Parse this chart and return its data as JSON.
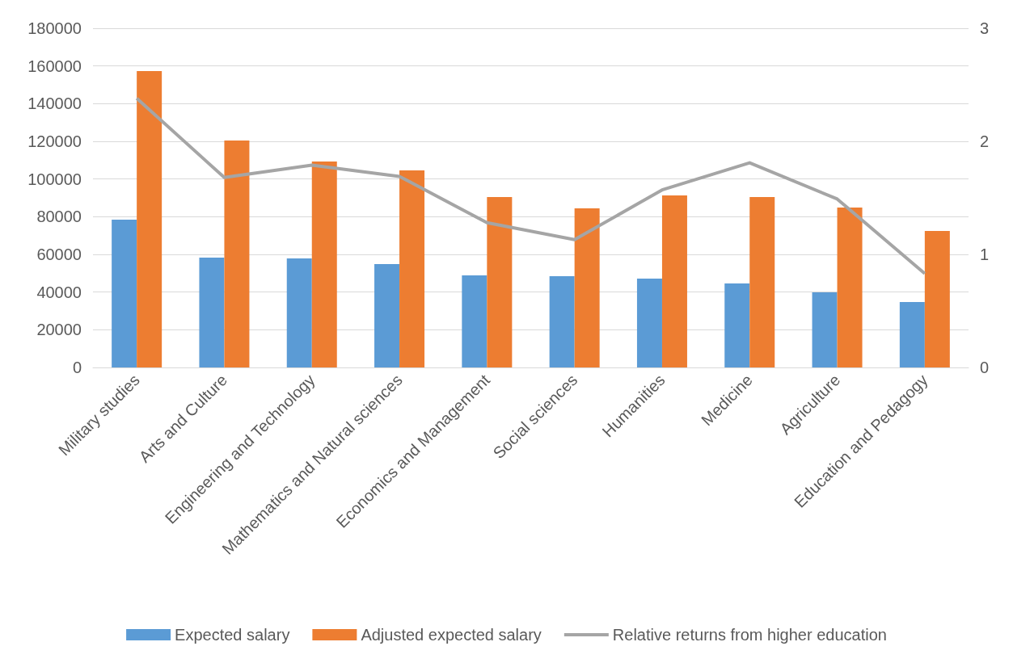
{
  "chart_data": {
    "type": "bar",
    "categories": [
      "Military studies",
      "Arts and Culture",
      "Engineering and Technology",
      "Mathematics and Natural sciences",
      "Economics and Management",
      "Social sciences",
      "Humanities",
      "Medicine",
      "Agriculture",
      "Education and Pedagogy"
    ],
    "series": [
      {
        "name": "Expected salary",
        "color": "#5b9bd5",
        "values": [
          78400,
          58300,
          57900,
          54900,
          48900,
          48400,
          47100,
          44600,
          39900,
          34700
        ]
      },
      {
        "name": "Adjusted expected salary",
        "color": "#ed7d31",
        "values": [
          157300,
          120400,
          109300,
          104600,
          90400,
          84400,
          91300,
          90400,
          84900,
          72400
        ]
      },
      {
        "name": "Relative returns from higher education",
        "type": "line",
        "axis": "y2",
        "color": "#a5a5a5",
        "values": [
          2.38,
          1.68,
          1.79,
          1.69,
          1.28,
          1.13,
          1.57,
          1.81,
          1.49,
          0.83
        ]
      }
    ],
    "ylim": [
      0,
      180000
    ],
    "yticks": [
      0,
      20000,
      40000,
      60000,
      80000,
      100000,
      120000,
      140000,
      160000,
      180000
    ],
    "y2lim": [
      0,
      3
    ],
    "y2ticks": [
      0,
      1,
      2,
      3
    ],
    "grid": "y",
    "legend": "bottom",
    "marker": "none"
  }
}
